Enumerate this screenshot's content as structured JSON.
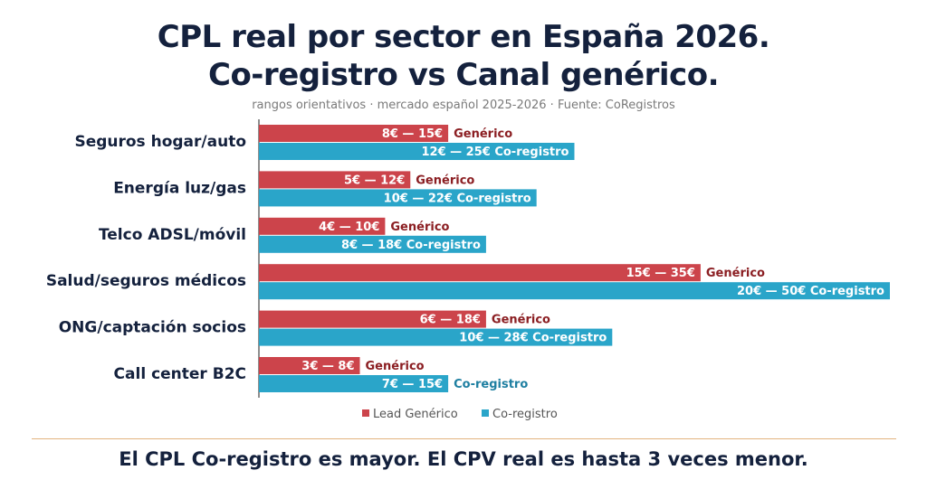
{
  "header": {
    "title_line1": "CPL real por sector en España 2026.",
    "title_line2": "Co-registro vs Canal genérico.",
    "subtitle": "rangos orientativos · mercado español 2025-2026 · Fuente: CoRegistros"
  },
  "footer": {
    "conclusion": "El CPL Co-registro es mayor. El CPV real es hasta 3 veces menor."
  },
  "chart_data": {
    "type": "bar",
    "orientation": "horizontal",
    "categories": [
      "Seguros hogar/auto",
      "Energía luz/gas",
      "Telco ADSL/móvil",
      "Salud/seguros médicos",
      "ONG/captación socios",
      "Call center B2C"
    ],
    "series": [
      {
        "name": "Lead Genérico",
        "color": "#cc444b",
        "values": [
          15,
          12,
          10,
          35,
          18,
          8
        ],
        "ranges": [
          "8€ — 15€",
          "5€ — 12€",
          "4€ — 10€",
          "15€ — 35€",
          "6€ — 18€",
          "3€ — 8€"
        ],
        "tag": "Genérico"
      },
      {
        "name": "Co-registro",
        "color": "#2aa5c9",
        "values": [
          25,
          22,
          18,
          50,
          28,
          15
        ],
        "ranges": [
          "12€ — 25€",
          "10€ — 22€",
          "8€ — 18€",
          "20€ — 50€",
          "10€ — 28€",
          "7€ — 15€"
        ],
        "tag": "Co-registro"
      }
    ],
    "xlim": [
      0,
      50
    ],
    "legend_position": "bottom-center",
    "colors": {
      "generico_text": "#8b1e22",
      "coregistro_text": "#1e7fa1",
      "label_text": "#14213d"
    }
  }
}
